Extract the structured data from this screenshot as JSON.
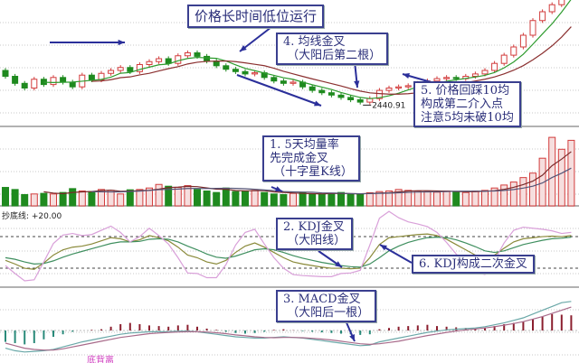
{
  "chart_data": [
    {
      "type": "candlestick",
      "panel": "price",
      "open": [
        2500,
        2490,
        2478,
        2470,
        2485,
        2476,
        2488,
        2480,
        2472,
        2492,
        2484,
        2495,
        2500,
        2505,
        2498,
        2510,
        2515,
        2520,
        2512,
        2525,
        2530,
        2524,
        2516,
        2508,
        2502,
        2498,
        2494,
        2496,
        2488,
        2482,
        2478,
        2480,
        2472,
        2466,
        2462,
        2458,
        2454,
        2450,
        2446,
        2452,
        2466,
        2470,
        2472,
        2474,
        2478,
        2482,
        2486,
        2488,
        2486,
        2490,
        2494,
        2500,
        2512,
        2526,
        2540,
        2560,
        2585,
        2600,
        2612,
        2640
      ],
      "close": [
        2490,
        2478,
        2470,
        2485,
        2476,
        2488,
        2480,
        2472,
        2492,
        2484,
        2495,
        2500,
        2505,
        2498,
        2510,
        2515,
        2520,
        2512,
        2525,
        2530,
        2524,
        2516,
        2508,
        2502,
        2498,
        2494,
        2496,
        2488,
        2482,
        2478,
        2480,
        2472,
        2466,
        2462,
        2458,
        2454,
        2450,
        2446,
        2452,
        2466,
        2470,
        2472,
        2474,
        2478,
        2482,
        2486,
        2488,
        2486,
        2490,
        2494,
        2500,
        2512,
        2526,
        2540,
        2560,
        2585,
        2600,
        2612,
        2640,
        2670
      ],
      "low_label": "2440.91",
      "moving_averages": [
        "MA5",
        "MA10"
      ],
      "colors": {
        "up": "#d23c3c",
        "down": "#1f8a1f",
        "ma5": "#2e9b2e",
        "ma10": "#8b3030"
      }
    },
    {
      "type": "bar",
      "panel": "volume",
      "values": [
        62,
        55,
        38,
        40,
        42,
        40,
        45,
        58,
        50,
        48,
        55,
        52,
        40,
        54,
        55,
        60,
        72,
        66,
        62,
        68,
        55,
        50,
        45,
        60,
        48,
        50,
        52,
        45,
        40,
        38,
        42,
        44,
        40,
        38,
        42,
        45,
        40,
        38,
        44,
        48,
        50,
        55,
        52,
        50,
        48,
        46,
        50,
        48,
        45,
        50,
        52,
        60,
        70,
        80,
        95,
        110,
        160,
        230,
        190,
        220
      ]
    },
    {
      "type": "line",
      "panel": "KDJ",
      "reference_lines": [
        20,
        80
      ],
      "series": [
        {
          "key": "K",
          "values": [
            35,
            28,
            20,
            18,
            30,
            45,
            55,
            60,
            62,
            66,
            72,
            78,
            76,
            70,
            74,
            82,
            78,
            72,
            60,
            45,
            40,
            32,
            28,
            35,
            50,
            62,
            68,
            60,
            50,
            40,
            32,
            28,
            25,
            22,
            20,
            20,
            19,
            20,
            40,
            65,
            78,
            80,
            82,
            84,
            85,
            82,
            75,
            65,
            55,
            45,
            38,
            45,
            58,
            70,
            76,
            78,
            80,
            81,
            80,
            82
          ],
          "color": "#8a8a3a"
        },
        {
          "key": "D",
          "values": [
            40,
            37,
            32,
            28,
            29,
            34,
            41,
            47,
            52,
            57,
            62,
            67,
            70,
            70,
            71,
            75,
            76,
            75,
            70,
            62,
            55,
            47,
            41,
            39,
            43,
            49,
            55,
            57,
            55,
            50,
            44,
            39,
            35,
            31,
            28,
            25,
            23,
            22,
            28,
            40,
            53,
            62,
            69,
            74,
            78,
            79,
            78,
            74,
            68,
            61,
            53,
            50,
            53,
            59,
            65,
            69,
            73,
            76,
            77,
            79
          ],
          "color": "#3f8f5f"
        },
        {
          "key": "J",
          "values": [
            25,
            10,
            -4,
            -2,
            32,
            67,
            83,
            86,
            82,
            84,
            92,
            100,
            88,
            70,
            80,
            96,
            82,
            66,
            40,
            11,
            10,
            2,
            2,
            27,
            64,
            88,
            94,
            66,
            40,
            20,
            8,
            6,
            5,
            4,
            4,
            10,
            11,
            16,
            64,
            115,
            128,
            116,
            108,
            104,
            99,
            88,
            69,
            47,
            29,
            13,
            8,
            35,
            68,
            92,
            98,
            96,
            94,
            91,
            86,
            88
          ],
          "color": "#d9a0d9"
        }
      ]
    },
    {
      "type": "bar",
      "panel": "MACD",
      "histogram": [
        -0.9,
        -1.0,
        -1.1,
        -1.0,
        -0.7,
        -0.5,
        -0.3,
        -0.1,
        0,
        0.05,
        0.1,
        0.3,
        0.5,
        0.6,
        0.5,
        0.4,
        0.35,
        0.3,
        0.4,
        0.45,
        0.3,
        0.15,
        0.05,
        -0.1,
        -0.2,
        -0.25,
        -0.2,
        -0.1,
        0.05,
        0.1,
        0.02,
        -0.05,
        -0.1,
        -0.15,
        -0.2,
        -0.25,
        -0.3,
        -0.35,
        -0.3,
        0.1,
        0.2,
        0.3,
        0.35,
        0.4,
        0.45,
        0.35,
        0.3,
        0.25,
        0.2,
        0.15,
        0.2,
        0.35,
        0.5,
        0.6,
        0.7,
        0.9,
        1.1,
        1.3,
        1.25,
        1.2
      ],
      "DIF": [
        -1.4,
        -1.6,
        -1.7,
        -1.65,
        -1.6,
        -1.5,
        -1.3,
        -1.1,
        -0.9,
        -0.75,
        -0.6,
        -0.45,
        -0.3,
        -0.2,
        -0.15,
        -0.1,
        -0.1,
        -0.1,
        -0.05,
        -0.05,
        -0.1,
        -0.2,
        -0.3,
        -0.4,
        -0.5,
        -0.55,
        -0.6,
        -0.6,
        -0.55,
        -0.5,
        -0.55,
        -0.6,
        -0.7,
        -0.8,
        -0.9,
        -1.0,
        -1.1,
        -1.2,
        -1.15,
        -0.9,
        -0.75,
        -0.6,
        -0.45,
        -0.3,
        -0.15,
        -0.05,
        0.05,
        0.1,
        0.15,
        0.2,
        0.3,
        0.45,
        0.6,
        0.8,
        1.0,
        1.3,
        1.6,
        1.9,
        2.2,
        2.3
      ],
      "DEA": [
        -1.0,
        -1.2,
        -1.4,
        -1.5,
        -1.55,
        -1.55,
        -1.45,
        -1.3,
        -1.15,
        -1.0,
        -0.85,
        -0.7,
        -0.55,
        -0.45,
        -0.35,
        -0.25,
        -0.2,
        -0.15,
        -0.12,
        -0.1,
        -0.1,
        -0.12,
        -0.18,
        -0.25,
        -0.35,
        -0.42,
        -0.5,
        -0.55,
        -0.57,
        -0.55,
        -0.55,
        -0.57,
        -0.62,
        -0.68,
        -0.75,
        -0.85,
        -0.95,
        -1.05,
        -1.1,
        -1.05,
        -0.95,
        -0.85,
        -0.7,
        -0.55,
        -0.4,
        -0.28,
        -0.15,
        -0.05,
        0.05,
        0.12,
        0.2,
        0.3,
        0.42,
        0.55,
        0.7,
        0.9,
        1.1,
        1.35,
        1.6,
        1.85
      ]
    }
  ],
  "labels": {
    "kdj_line": "抄底线: +20.00",
    "divergence": "底背离"
  },
  "annotations": {
    "low_price": "价格长时间低位运行",
    "ma_cross": "4. 均线金叉\n （大阳后第二根）",
    "pullback": "5. 价格回踩10均\n构成第二介入点\n注意5均未破10均",
    "volume_cross": "1. 5天均量率\n先完成金叉\n （十字星K线）",
    "kdj_cross": "2. KDJ金叉\n （大阳线）",
    "kdj_second": "6. KDJ构成二次金叉",
    "macd_cross": "3. MACD金叉\n （大阳后一根）"
  }
}
